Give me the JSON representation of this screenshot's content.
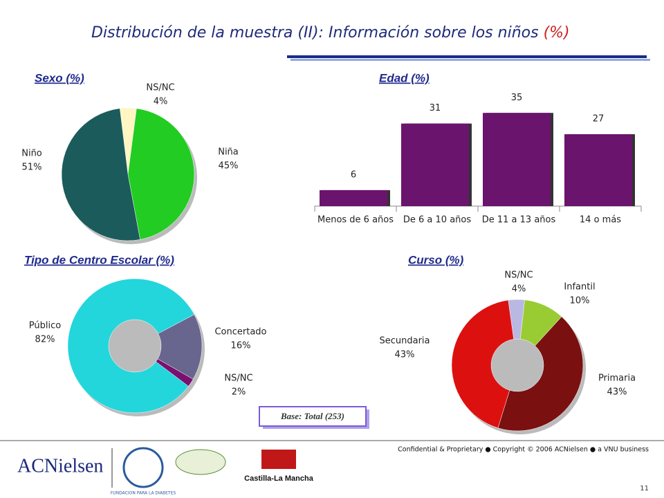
{
  "title": "Distribución de la muestra (II): Información sobre los niños",
  "title_unit": "(%)",
  "chart_data": [
    {
      "type": "pie",
      "title": "Sexo (%)",
      "categories": [
        "NS/NC",
        "Niña",
        "Niño"
      ],
      "values": [
        4,
        45,
        51
      ],
      "value_labels": [
        "4%",
        "45%",
        "51%"
      ],
      "colors": [
        "#fff6c4",
        "#22cc22",
        "#1b5b5b"
      ]
    },
    {
      "type": "bar",
      "title": "Edad (%)",
      "categories": [
        "Menos de 6 años",
        "De 6 a 10 años",
        "De 11 a 13 años",
        "14 o más"
      ],
      "values": [
        6,
        31,
        35,
        27
      ],
      "color": "#6a146e"
    },
    {
      "type": "donut",
      "title": "Tipo de Centro Escolar (%)",
      "categories": [
        "Público",
        "Concertado",
        "NS/NC"
      ],
      "values": [
        82,
        16,
        2
      ],
      "value_labels": [
        "82%",
        "16%",
        "2%"
      ],
      "colors": [
        "#22d6dc",
        "#68668e",
        "#7a1070"
      ]
    },
    {
      "type": "donut",
      "title": "Curso (%)",
      "categories": [
        "NS/NC",
        "Infantil",
        "Primaria",
        "Secundaria"
      ],
      "values": [
        4,
        10,
        43,
        43
      ],
      "value_labels": [
        "4%",
        "10%",
        "43%",
        "43%"
      ],
      "colors": [
        "#b8b8e2",
        "#99cc33",
        "#7a1010",
        "#dd1010"
      ]
    }
  ],
  "base_note": "Base: Total (253)",
  "footer": "Confidential & Proprietary ● Copyright © 2006 ACNielsen ● a VNU business",
  "page_number": "11",
  "logos": [
    "ACNielsen",
    "FUNDACION PARA LA DIABETES",
    "Castilla-La Mancha"
  ]
}
